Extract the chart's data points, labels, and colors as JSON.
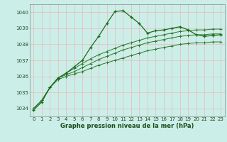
{
  "title": "Graphe pression niveau de la mer (hPa)",
  "bg_color": "#cceee8",
  "grid_color": "#e8b8b8",
  "line_color": "#1a6b1a",
  "line_color2": "#2d7a2d",
  "xlim": [
    -0.5,
    23.5
  ],
  "ylim": [
    1033.5,
    1040.5
  ],
  "yticks": [
    1034,
    1035,
    1036,
    1037,
    1038,
    1039,
    1040
  ],
  "xticks": [
    0,
    1,
    2,
    3,
    4,
    5,
    6,
    7,
    8,
    9,
    10,
    11,
    12,
    13,
    14,
    15,
    16,
    17,
    18,
    19,
    20,
    21,
    22,
    23
  ],
  "series1": [
    1033.9,
    1034.4,
    1035.3,
    1035.9,
    1036.2,
    1036.6,
    1037.0,
    1037.8,
    1038.5,
    1039.3,
    1040.05,
    1040.1,
    1039.7,
    1039.3,
    1038.7,
    1038.85,
    1038.9,
    1039.0,
    1039.1,
    1038.9,
    1038.6,
    1038.5,
    1038.55,
    1038.6
  ],
  "series2": [
    1034.0,
    1034.5,
    1035.3,
    1035.9,
    1036.2,
    1036.5,
    1036.8,
    1037.1,
    1037.35,
    1037.55,
    1037.75,
    1037.95,
    1038.1,
    1038.25,
    1038.4,
    1038.5,
    1038.6,
    1038.7,
    1038.8,
    1038.85,
    1038.9,
    1038.9,
    1038.95,
    1038.95
  ],
  "series3": [
    1034.0,
    1034.5,
    1035.3,
    1035.9,
    1036.1,
    1036.3,
    1036.55,
    1036.8,
    1037.05,
    1037.25,
    1037.45,
    1037.65,
    1037.8,
    1037.95,
    1038.1,
    1038.2,
    1038.3,
    1038.4,
    1038.5,
    1038.55,
    1038.6,
    1038.6,
    1038.65,
    1038.65
  ],
  "series4": [
    1034.0,
    1034.5,
    1035.3,
    1035.8,
    1036.0,
    1036.15,
    1036.3,
    1036.5,
    1036.7,
    1036.85,
    1037.0,
    1037.15,
    1037.3,
    1037.45,
    1037.6,
    1037.7,
    1037.8,
    1037.9,
    1038.0,
    1038.05,
    1038.1,
    1038.1,
    1038.15,
    1038.15
  ],
  "tick_fontsize": 5,
  "xlabel_fontsize": 6,
  "tick_color": "#1a4a1a",
  "spine_color": "#888888"
}
